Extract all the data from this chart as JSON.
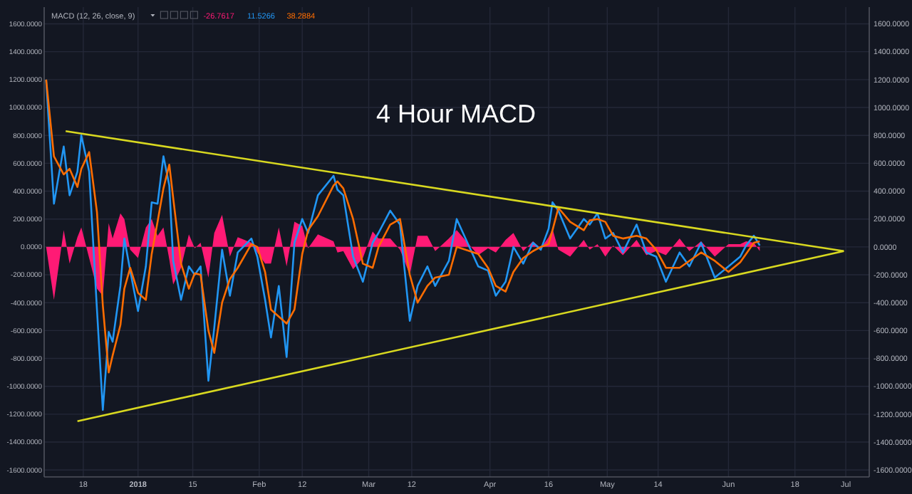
{
  "chart_data": {
    "type": "line",
    "title": "4 Hour MACD",
    "legend_title": "MACD (12, 26, close, 9)",
    "legend": "top left",
    "grid": true,
    "xlim": [
      "2017-12-08",
      "2018-07-07"
    ],
    "xticks": [
      {
        "value": "2017-12-18",
        "label": "18"
      },
      {
        "value": "2018-01-01",
        "label": "2018"
      },
      {
        "value": "2018-01-15",
        "label": "15"
      },
      {
        "value": "2018-02-01",
        "label": "Feb"
      },
      {
        "value": "2018-02-12",
        "label": "12"
      },
      {
        "value": "2018-03-01",
        "label": "Mar"
      },
      {
        "value": "2018-03-12",
        "label": "12"
      },
      {
        "value": "2018-04-01",
        "label": "Apr"
      },
      {
        "value": "2018-04-16",
        "label": "16"
      },
      {
        "value": "2018-05-01",
        "label": "May"
      },
      {
        "value": "2018-05-14",
        "label": "14"
      },
      {
        "value": "2018-06-01",
        "label": "Jun"
      },
      {
        "value": "2018-06-18",
        "label": "18"
      },
      {
        "value": "2018-07-01",
        "label": "Jul"
      }
    ],
    "ylim": [
      -1650,
      1720
    ],
    "yticks": [
      {
        "value": -1600,
        "label": "-1600.0000"
      },
      {
        "value": -1400,
        "label": "-1400.0000"
      },
      {
        "value": -1200,
        "label": "-1200.0000"
      },
      {
        "value": -1000,
        "label": "-1000.0000"
      },
      {
        "value": -800,
        "label": "-800.0000"
      },
      {
        "value": -600,
        "label": "-600.0000"
      },
      {
        "value": -400,
        "label": "-400.0000"
      },
      {
        "value": -200,
        "label": "-200.0000"
      },
      {
        "value": 0,
        "label": "0.0000"
      },
      {
        "value": 200,
        "label": "200.0000"
      },
      {
        "value": 400,
        "label": "400.0000"
      },
      {
        "value": 600,
        "label": "600.0000"
      },
      {
        "value": 800,
        "label": "800.0000"
      },
      {
        "value": 1000,
        "label": "1000.0000"
      },
      {
        "value": 1200,
        "label": "1200.0000"
      },
      {
        "value": 1400,
        "label": "1400.0000"
      },
      {
        "value": 1600,
        "label": "1600.0000"
      }
    ],
    "y2lim": [
      -1650,
      1720
    ],
    "y2ticks": [
      {
        "value": -1600,
        "label": "-1600.0000"
      },
      {
        "value": -1400,
        "label": "-1400.0000"
      },
      {
        "value": -1200,
        "label": "-1200.0000"
      },
      {
        "value": -1000,
        "label": "-1000.0000"
      },
      {
        "value": -800,
        "label": "-800.0000"
      },
      {
        "value": -600,
        "label": "-600.0000"
      },
      {
        "value": -400,
        "label": "-400.0000"
      },
      {
        "value": -200,
        "label": "-200.0000"
      },
      {
        "value": 0,
        "label": "0.0000"
      },
      {
        "value": 200,
        "label": "200.0000"
      },
      {
        "value": 400,
        "label": "400.0000"
      },
      {
        "value": 600,
        "label": "600.0000"
      },
      {
        "value": 800,
        "label": "800.0000"
      },
      {
        "value": 1000,
        "label": "1000.0000"
      },
      {
        "value": 1200,
        "label": "1200.0000"
      },
      {
        "value": 1400,
        "label": "1400.0000"
      },
      {
        "value": 1600,
        "label": "1600.0000"
      }
    ],
    "x": [
      "2017-12-08T12:00",
      "2017-12-10T12:00",
      "2017-12-13",
      "2017-12-14T12:00",
      "2017-12-16T12:00",
      "2017-12-17T12:00",
      "2017-12-19T12:00",
      "2017-12-21T12:00",
      "2017-12-23",
      "2017-12-24T12:00",
      "2017-12-25T12:00",
      "2017-12-27T12:00",
      "2017-12-28T12:00",
      "2017-12-30",
      "2018-01-01",
      "2018-01-03",
      "2018-01-04T12:00",
      "2018-01-06",
      "2018-01-07T12:00",
      "2018-01-09",
      "2018-01-10",
      "2018-01-12",
      "2018-01-14",
      "2018-01-15T12:00",
      "2018-01-17",
      "2018-01-19",
      "2018-01-20T12:00",
      "2018-01-22T12:00",
      "2018-01-24T12:00",
      "2018-01-26T12:00",
      "2018-01-30",
      "2018-01-31T12:00",
      "2018-02-02T12:00",
      "2018-02-04",
      "2018-02-06",
      "2018-02-08",
      "2018-02-10",
      "2018-02-12",
      "2018-02-13T12:00",
      "2018-02-16",
      "2018-02-20",
      "2018-02-21",
      "2018-02-22T12:00",
      "2018-02-25",
      "2018-02-27T12:00",
      "2018-03-02",
      "2018-03-03T12:00",
      "2018-03-06T12:00",
      "2018-03-09",
      "2018-03-11T12:00",
      "2018-03-13T12:00",
      "2018-03-16",
      "2018-03-18",
      "2018-03-21T12:00",
      "2018-03-23T12:00",
      "2018-03-29",
      "2018-03-31T12:00",
      "2018-04-02T12:00",
      "2018-04-05",
      "2018-04-07",
      "2018-04-09T12:00",
      "2018-04-12",
      "2018-04-14",
      "2018-04-16",
      "2018-04-17",
      "2018-04-18T12:00",
      "2018-04-21T12:00",
      "2018-04-25",
      "2018-04-26T12:00",
      "2018-04-28T12:00",
      "2018-04-30T12:00",
      "2018-05-02T12:00",
      "2018-05-05",
      "2018-05-08T12:00",
      "2018-05-11",
      "2018-05-13T12:00",
      "2018-05-16",
      "2018-05-19T12:00",
      "2018-05-22",
      "2018-05-25",
      "2018-05-28T12:00",
      "2018-06-01",
      "2018-06-04",
      "2018-06-05T12:00",
      "2018-06-07T12:00",
      "2018-06-09"
    ],
    "series": [
      {
        "name": "-26.7617",
        "type": "area",
        "color": "#ff1a75",
        "values": [
          0,
          -380,
          120,
          -120,
          70,
          140,
          -80,
          -300,
          -350,
          170,
          60,
          240,
          200,
          -20,
          -80,
          140,
          200,
          80,
          140,
          -90,
          -270,
          -150,
          90,
          -10,
          30,
          -220,
          100,
          230,
          -70,
          70,
          30,
          -40,
          -120,
          -120,
          140,
          -140,
          180,
          150,
          -10,
          90,
          40,
          -40,
          -30,
          -160,
          -80,
          110,
          60,
          60,
          -20,
          -200,
          80,
          80,
          -30,
          60,
          120,
          -60,
          -10,
          -40,
          50,
          100,
          -30,
          40,
          -10,
          70,
          130,
          -20,
          -70,
          50,
          -20,
          20,
          -70,
          10,
          -60,
          50,
          -60,
          -30,
          -60,
          60,
          -30,
          40,
          -70,
          20,
          20,
          40,
          30,
          -30
        ]
      },
      {
        "name": "11.5266",
        "color": "#2196f3",
        "values": [
          1200,
          310,
          720,
          370,
          540,
          800,
          540,
          -450,
          -1170,
          -610,
          -680,
          -280,
          60,
          -170,
          -460,
          -140,
          320,
          310,
          650,
          440,
          -100,
          -380,
          -140,
          -200,
          -140,
          -960,
          -580,
          -20,
          -350,
          -40,
          60,
          -70,
          -380,
          -650,
          -280,
          -790,
          30,
          200,
          100,
          370,
          510,
          410,
          370,
          -70,
          -250,
          30,
          100,
          260,
          160,
          -530,
          -280,
          -140,
          -280,
          -100,
          200,
          -140,
          -170,
          -350,
          -250,
          0,
          -120,
          30,
          -20,
          130,
          320,
          260,
          60,
          200,
          160,
          240,
          60,
          100,
          -40,
          160,
          -40,
          -70,
          -250,
          -40,
          -140,
          30,
          -220,
          -140,
          -70,
          10,
          80,
          10
        ]
      },
      {
        "name": "38.2884",
        "color": "#ff6d00",
        "values": [
          1200,
          650,
          520,
          560,
          430,
          560,
          680,
          250,
          -420,
          -900,
          -780,
          -560,
          -300,
          -150,
          -330,
          -380,
          -50,
          180,
          420,
          590,
          350,
          -120,
          -300,
          -190,
          -200,
          -600,
          -760,
          -400,
          -230,
          -150,
          20,
          0,
          -180,
          -450,
          -500,
          -550,
          -450,
          -50,
          120,
          220,
          440,
          470,
          420,
          200,
          -120,
          -150,
          0,
          160,
          200,
          -200,
          -400,
          -280,
          -220,
          -200,
          0,
          -50,
          -150,
          -280,
          -320,
          -180,
          -80,
          -30,
          0,
          20,
          120,
          280,
          180,
          120,
          190,
          200,
          180,
          80,
          60,
          80,
          60,
          -20,
          -150,
          -150,
          -100,
          -40,
          -100,
          -180,
          -110,
          -50,
          30,
          40
        ]
      },
      {
        "type": "line",
        "color": "#d8d820",
        "x": [
          "2017-12-13T12:00",
          "2018-06-30T12:00"
        ],
        "values": [
          830,
          -30
        ]
      },
      {
        "type": "line",
        "color": "#d8d820",
        "x": [
          "2017-12-16T12:00",
          "2018-06-30T12:00"
        ],
        "values": [
          -1250,
          -30
        ]
      }
    ]
  }
}
